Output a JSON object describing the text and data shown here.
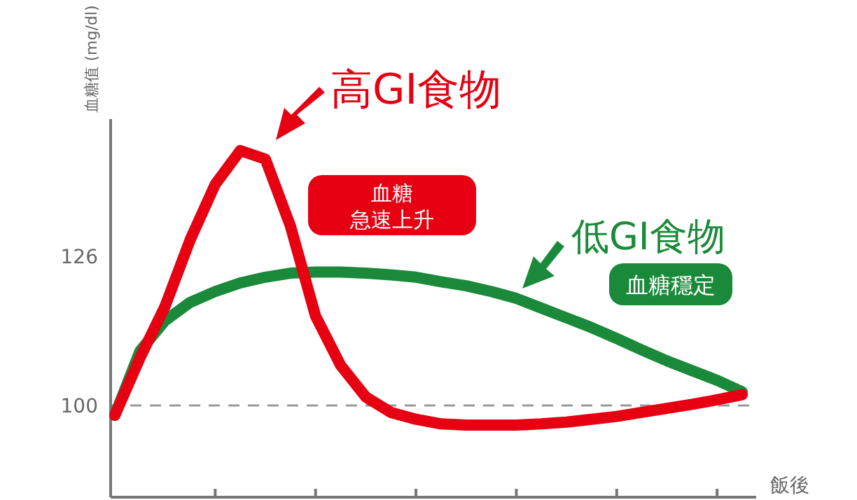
{
  "chart_data": {
    "type": "line",
    "ylabel": "血糖值 (mg/dl)",
    "xlabel": "飯後",
    "categories": [
      null,
      null,
      null,
      null,
      null,
      null,
      null,
      null,
      null,
      null,
      null,
      null,
      null,
      null,
      null,
      null,
      null,
      null,
      null,
      null,
      null,
      null,
      null,
      null,
      null,
      null
    ],
    "ylim": [
      84,
      150
    ],
    "yticks": [
      100,
      126
    ],
    "grid": false,
    "marker": "none",
    "line_style": "solid",
    "ref_lines": [
      {
        "axis": "y",
        "value": 100,
        "color": "#999999",
        "line_style": "dashed"
      }
    ],
    "series": [
      {
        "color": "#1a8a3a",
        "values": [
          98.3,
          109.5,
          114.8,
          118,
          119.9,
          121.4,
          122.4,
          123.1,
          123.3,
          123.3,
          123.1,
          122.8,
          122.4,
          121.6,
          120.9,
          119.9,
          118.7,
          117,
          115.3,
          113.6,
          111.7,
          109.7,
          107.8,
          106.1,
          104.4,
          102.4
        ]
      },
      {
        "color": "#e60012",
        "values": [
          98.3,
          108.3,
          117.3,
          128.9,
          138.6,
          144.5,
          143,
          131.3,
          115.6,
          107,
          101.5,
          98.8,
          97.6,
          96.8,
          96.6,
          96.6,
          96.6,
          96.8,
          97.1,
          97.6,
          98.1,
          98.8,
          99.5,
          100.2,
          101,
          101.9
        ]
      }
    ],
    "annotations": [
      "高GI食物",
      "血糖",
      "急速上升",
      "低GI食物",
      "血糖穩定"
    ]
  }
}
